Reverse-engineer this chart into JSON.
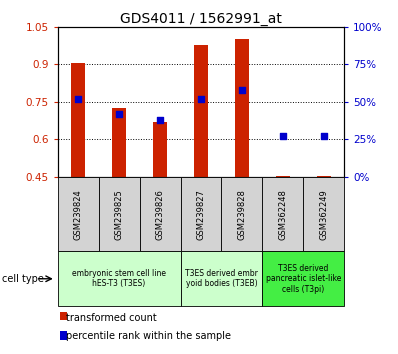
{
  "title": "GDS4011 / 1562991_at",
  "samples": [
    "GSM239824",
    "GSM239825",
    "GSM239826",
    "GSM239827",
    "GSM239828",
    "GSM362248",
    "GSM362249"
  ],
  "red_values": [
    0.905,
    0.725,
    0.67,
    0.975,
    1.0,
    0.452,
    0.452
  ],
  "red_base": 0.45,
  "blue_values_pct": [
    52,
    42,
    38,
    52,
    58,
    27,
    27
  ],
  "ylim_left": [
    0.45,
    1.05
  ],
  "ylim_right": [
    0,
    100
  ],
  "yticks_left": [
    0.45,
    0.6,
    0.75,
    0.9,
    1.05
  ],
  "yticks_right": [
    0,
    25,
    50,
    75,
    100
  ],
  "ytick_labels_left": [
    "0.45",
    "0.6",
    "0.75",
    "0.9",
    "1.05"
  ],
  "ytick_labels_right": [
    "0%",
    "25%",
    "50%",
    "75%",
    "100%"
  ],
  "bar_color": "#cc2200",
  "dot_color": "#0000cc",
  "bg_color": "#ffffff",
  "group_configs": [
    {
      "label": "embryonic stem cell line\nhES-T3 (T3ES)",
      "indices": [
        0,
        1,
        2
      ],
      "color": "#ccffcc"
    },
    {
      "label": "T3ES derived embr\nyoid bodies (T3EB)",
      "indices": [
        3,
        4
      ],
      "color": "#ccffcc"
    },
    {
      "label": "T3ES derived\npancreatic islet-like\ncells (T3pi)",
      "indices": [
        5,
        6
      ],
      "color": "#44ee44"
    }
  ],
  "bar_width": 0.35,
  "dot_size": 25,
  "label_red": "transformed count",
  "label_blue": "percentile rank within the sample",
  "cell_type_label": "cell type"
}
